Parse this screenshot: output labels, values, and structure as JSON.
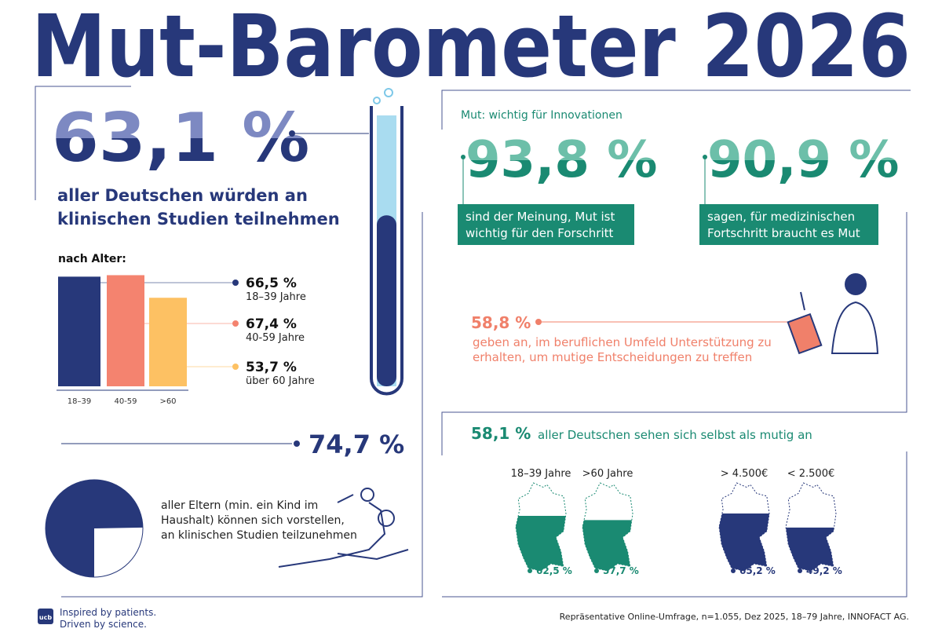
{
  "title": "Mut-Barometer 2026",
  "participation": {
    "stat": {
      "value": 63.1,
      "label": "63,1 %"
    },
    "text": [
      "aller Deutschen würden an",
      "klinischen Studien teilnehmen"
    ]
  },
  "by_age": {
    "title": "nach Alter:",
    "categories": [
      "18–39",
      "40-59",
      ">60"
    ],
    "groups": [
      "18–39 Jahre",
      "40-59 Jahre",
      "über 60 Jahre"
    ],
    "values": [
      66.5,
      67.4,
      53.7
    ],
    "value_labels": [
      "66,5 %",
      "67,4 %",
      "53,7 %"
    ],
    "colors": [
      "#27387a",
      "#f4836f",
      "#fdc163"
    ]
  },
  "parents": {
    "stat": {
      "value": 74.7,
      "label": "74,7 %"
    },
    "text": [
      "aller Eltern (min. ein Kind im",
      "Haushalt) können sich vorstellen,",
      "an klinischen Studien teilzunehmen"
    ]
  },
  "innovation": {
    "heading": "Mut: wichtig für Innovationen",
    "items": [
      {
        "stat": {
          "value": 93.8,
          "label": "93,8 %"
        },
        "text": [
          "sind der Meinung, Mut ist",
          "wichtig für den Forschritt"
        ]
      },
      {
        "stat": {
          "value": 90.9,
          "label": "90,9 %"
        },
        "text": [
          "sagen, für medizinischen",
          "Fortschritt braucht es Mut"
        ]
      }
    ]
  },
  "support": {
    "stat": {
      "value": 58.8,
      "label": "58,8 %"
    },
    "text": [
      "geben an, im beruflichen Umfeld Unterstützung zu",
      "erhalten, um mutige Entscheidungen zu treffen"
    ]
  },
  "courage": {
    "stat": {
      "value": 58.1,
      "label": "58,1 %"
    },
    "text": "aller Deutschen sehen sich selbst als mutig an",
    "maps": [
      {
        "label": "18–39 Jahre",
        "value": 62.5,
        "value_label": "62,5 %",
        "color": "#1a8a72"
      },
      {
        "label": ">60 Jahre",
        "value": 57.7,
        "value_label": "57,7 %",
        "color": "#1a8a72"
      },
      {
        "label": "> 4.500€",
        "value": 65.2,
        "value_label": "65,2 %",
        "color": "#27387a"
      },
      {
        "label": "< 2.500€",
        "value": 49.2,
        "value_label": "49,2 %",
        "color": "#27387a"
      }
    ]
  },
  "footer": {
    "logo": "ucb",
    "brand": [
      "Inspired by patients.",
      "Driven by science."
    ],
    "source": "Repräsentative Online-Umfrage, n=1.055, Dez 2025, 18–79 Jahre, INNOFACT AG."
  }
}
